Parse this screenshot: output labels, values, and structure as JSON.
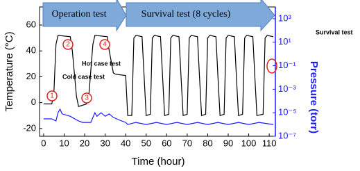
{
  "chart_data": {
    "type": "line",
    "xlabel": "Time (hour)",
    "ylabel": "Temperature (°C)",
    "y2label": "Pressure (torr)",
    "xlim": [
      -2,
      113
    ],
    "xticks": [
      0,
      10,
      20,
      30,
      40,
      50,
      60,
      70,
      80,
      90,
      100,
      110
    ],
    "ylim": [
      -26,
      74
    ],
    "yticks": [
      -20,
      0,
      20,
      40,
      60
    ],
    "y2lim": [
      1e-07,
      10000
    ],
    "y2scale": "log",
    "y2ticks": [
      {
        "value": 1000,
        "label": "10³"
      },
      {
        "value": 10,
        "label": "10¹"
      },
      {
        "value": 0.1,
        "label": "10⁻¹"
      },
      {
        "value": 0.001,
        "label": "10⁻³"
      },
      {
        "value": 1e-05,
        "label": "10⁻⁵"
      },
      {
        "value": 1e-07,
        "label": "10⁻⁷"
      }
    ],
    "annotations": [
      "Operation test",
      "Survival test (8 cycles)",
      "Hot case test",
      "Cold case test",
      "Survival test",
      "1",
      "2",
      "3",
      "4"
    ],
    "series": [
      {
        "color": "#000000",
        "axis": "y",
        "x": [
          0,
          4,
          5,
          6,
          7,
          13,
          14,
          16,
          17,
          21,
          22,
          24,
          25,
          31,
          32,
          34,
          35,
          40,
          41,
          43,
          44,
          45,
          48,
          49,
          50,
          52,
          53,
          54,
          57,
          58,
          59,
          61,
          62,
          63,
          66,
          67,
          68,
          70,
          71,
          72,
          75,
          76,
          77,
          79,
          80,
          81,
          84,
          85,
          86,
          88,
          89,
          90,
          93,
          94,
          95,
          97,
          98,
          99,
          102,
          103,
          104,
          107,
          108,
          109,
          112
        ],
        "values": [
          -1,
          -1,
          8,
          45,
          52,
          51,
          40,
          5,
          -3,
          -1,
          5,
          45,
          52,
          51,
          40,
          23,
          22,
          21,
          -10,
          -10,
          50,
          52,
          51,
          20,
          -10,
          -9,
          50,
          52,
          51,
          20,
          -10,
          -9,
          50,
          52,
          51,
          20,
          -10,
          -9,
          50,
          52,
          51,
          20,
          -10,
          -9,
          50,
          52,
          51,
          20,
          -10,
          -9,
          50,
          52,
          51,
          20,
          -10,
          -9,
          50,
          52,
          51,
          20,
          -10,
          -9,
          50,
          52,
          51
        ]
      },
      {
        "color": "#1a1aff",
        "axis": "y2",
        "x": [
          0,
          4,
          6,
          7,
          8,
          9,
          13,
          17,
          19,
          23,
          25,
          26,
          28,
          30,
          32,
          34,
          38,
          40,
          41,
          45,
          50,
          55,
          60,
          65,
          70,
          75,
          80,
          85,
          90,
          95,
          100,
          105,
          112
        ],
        "values": [
          3e-06,
          3e-06,
          2e-06,
          1e-05,
          2e-05,
          8e-06,
          5e-06,
          2e-06,
          1.5e-06,
          1.5e-06,
          1e-05,
          5e-06,
          1e-05,
          5e-06,
          8e-06,
          4e-06,
          2e-06,
          1.5e-06,
          1e-06,
          1.5e-06,
          1e-06,
          1.5e-06,
          1e-06,
          1.5e-06,
          1e-06,
          1.5e-06,
          1e-06,
          1.5e-06,
          1e-06,
          1.5e-06,
          1e-06,
          1.5e-06,
          1e-06
        ]
      }
    ]
  }
}
